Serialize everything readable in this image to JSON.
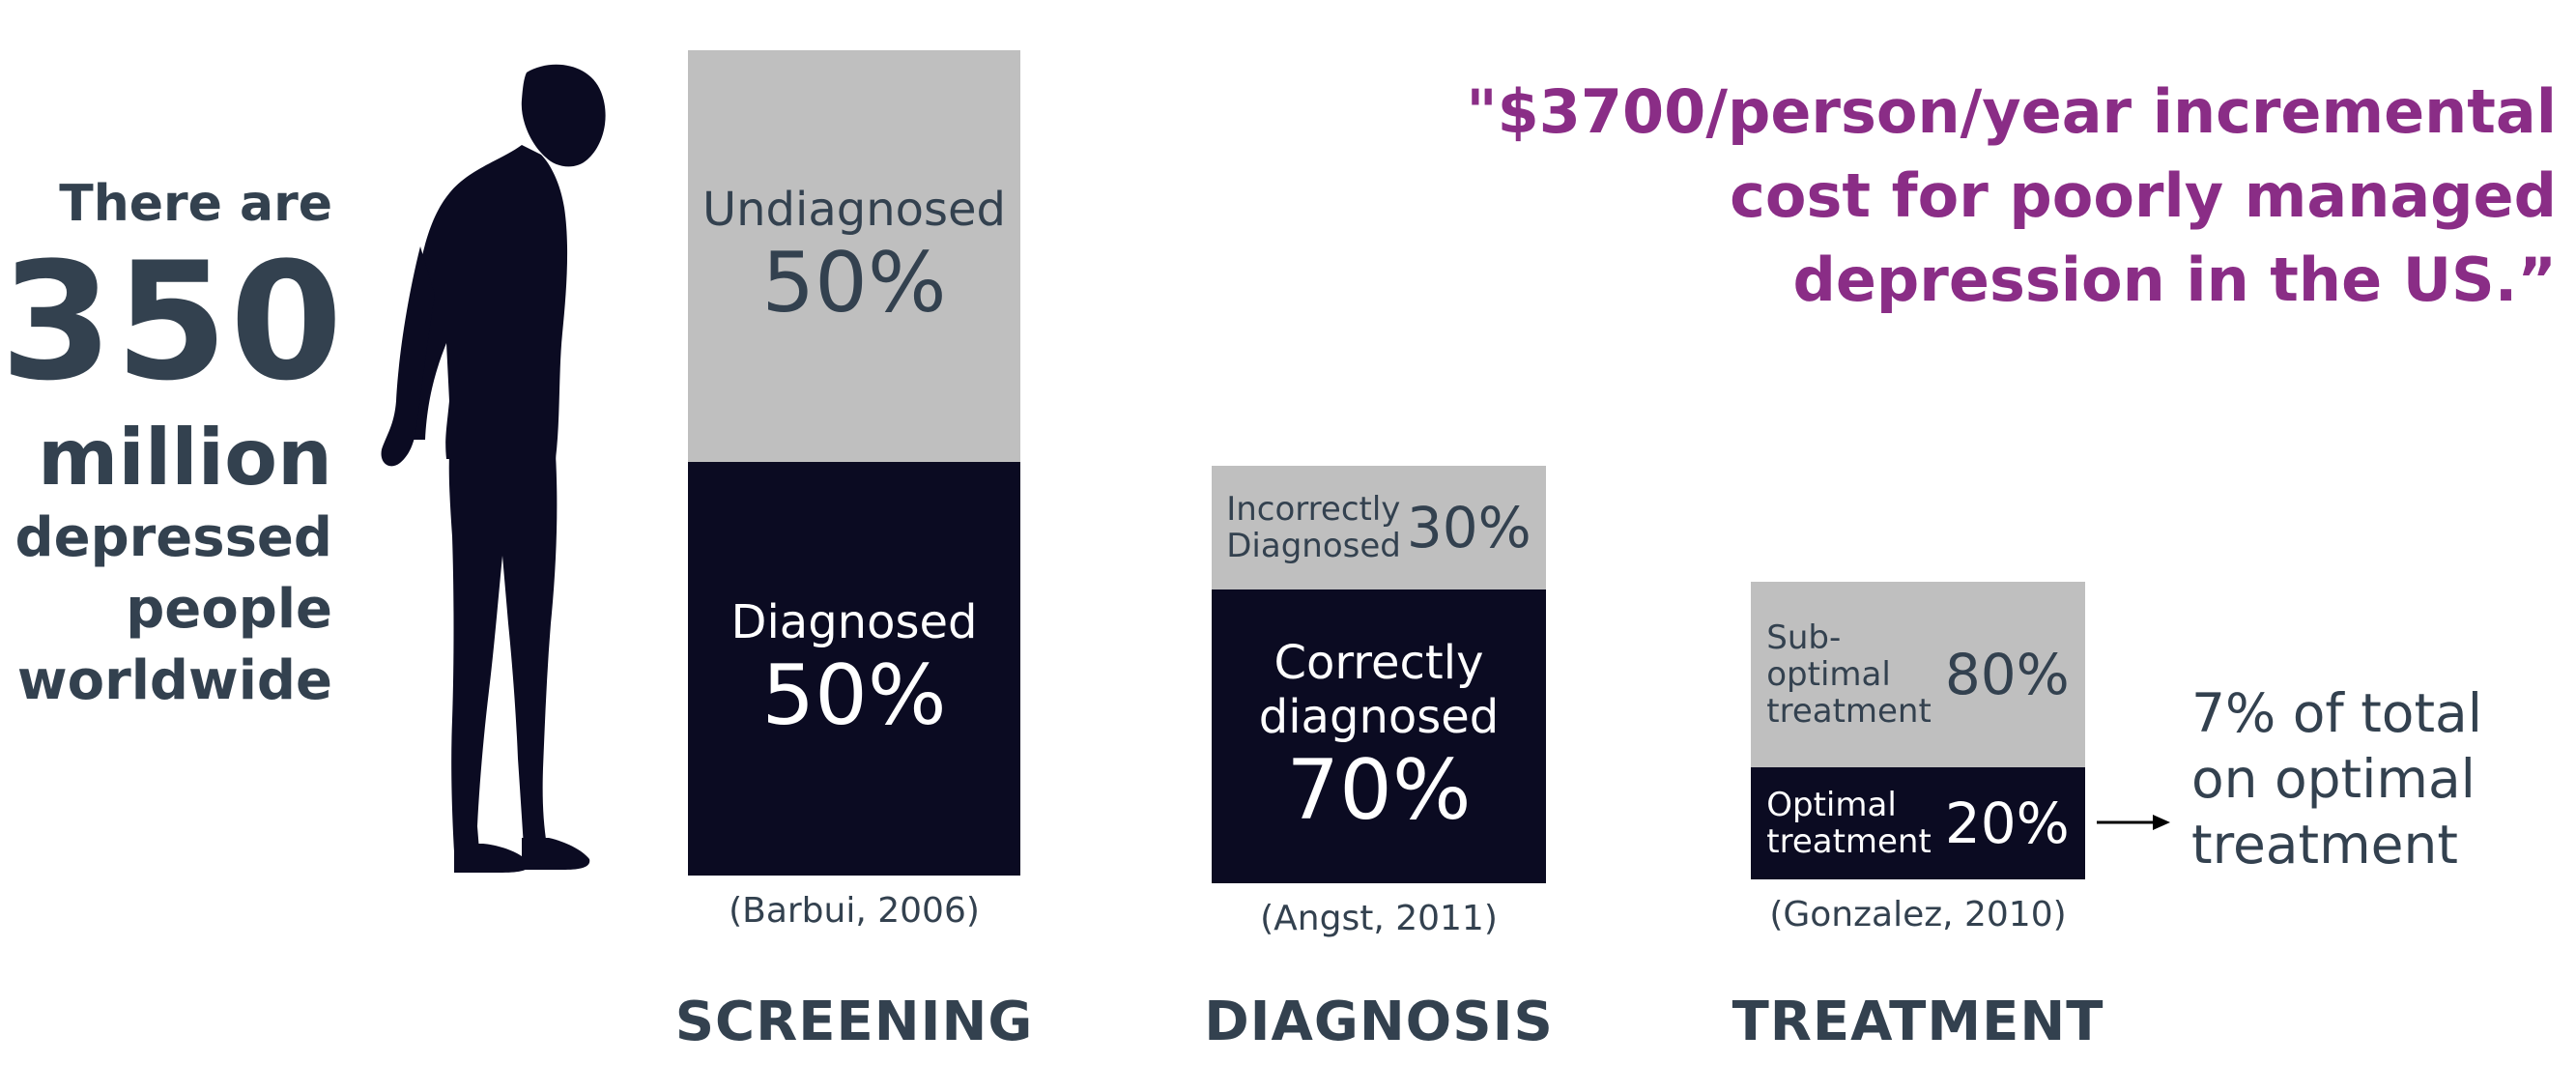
{
  "stat": {
    "line1": "There are",
    "number": "350",
    "unit": "million",
    "desc1": "depressed",
    "desc2": "people",
    "desc3": "worldwide"
  },
  "quote": {
    "line1": "\"$3700/person/year incremental",
    "line2": "cost for poorly managed",
    "line3": "depression in the US.”"
  },
  "chart_data": {
    "type": "bar",
    "stacked": true,
    "categories": [
      "SCREENING",
      "DIAGNOSIS",
      "TREATMENT"
    ],
    "series": [
      {
        "name": "Undiagnosed / Incorrectly Diagnosed / Sub-optimal treatment",
        "values": [
          50,
          30,
          80
        ]
      },
      {
        "name": "Diagnosed / Correctly diagnosed / Optimal treatment",
        "values": [
          50,
          70,
          20
        ]
      }
    ],
    "colors": {
      "gray": "#bfbfbf",
      "navy": "#0b0b22",
      "quote": "#8a2d86",
      "text": "#33414f"
    }
  },
  "screening": {
    "top_label": "Undiagnosed",
    "top_pct": "50%",
    "bottom_label": "Diagnosed",
    "bottom_pct": "50%",
    "citation": "(Barbui, 2006)",
    "stage": "SCREENING"
  },
  "diagnosis": {
    "top_label_1": "Incorrectly",
    "top_label_2": "Diagnosed",
    "top_pct": "30%",
    "bottom_label_1": "Correctly",
    "bottom_label_2": "diagnosed",
    "bottom_pct": "70%",
    "citation": "(Angst, 2011)",
    "stage": "DIAGNOSIS"
  },
  "treatment": {
    "top_label_1": "Sub-",
    "top_label_2": "optimal",
    "top_label_3": "treatment",
    "top_pct": "80%",
    "bottom_label_1": "Optimal",
    "bottom_label_2": "treatment",
    "bottom_pct": "20%",
    "citation": "(Gonzalez, 2010)",
    "stage": "TREATMENT"
  },
  "note": {
    "line1": "7% of total",
    "line2": "on optimal",
    "line3": "treatment"
  }
}
